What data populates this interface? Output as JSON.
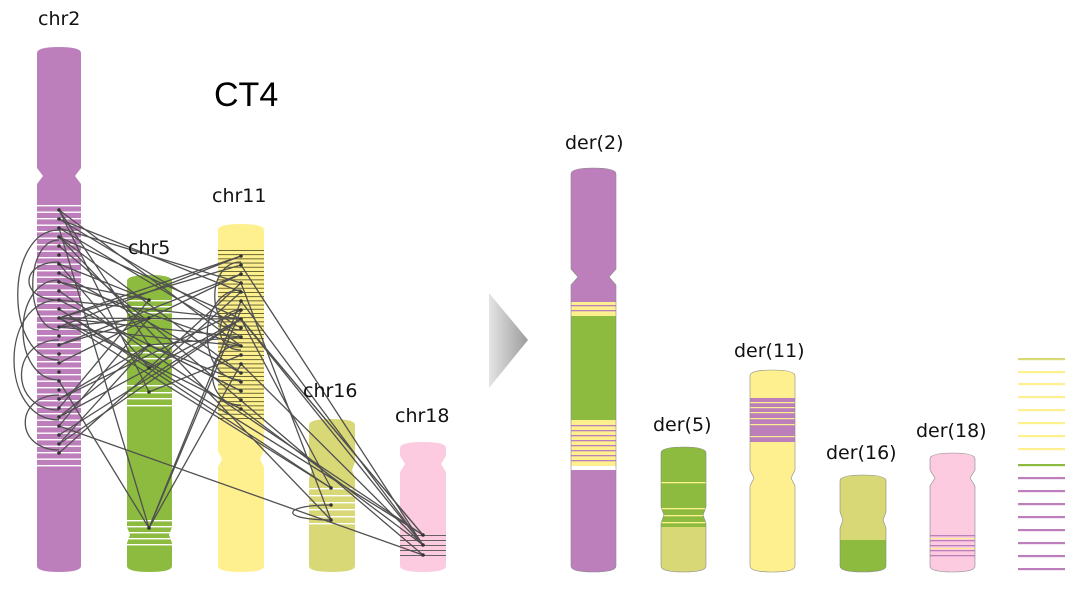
{
  "title": "CT4",
  "colors": {
    "chr2": "#bd7fbb",
    "chr5": "#8cbb3f",
    "chr11": "#fff08f",
    "chr16": "#d9d877",
    "chr18": "#fccbe0",
    "line": "#505050",
    "arrow": "#a9a9a9"
  },
  "original": {
    "chr2": "chr2",
    "chr5": "chr5",
    "chr11": "chr11",
    "chr16": "chr16",
    "chr18": "chr18"
  },
  "derivative": {
    "der2": "der(2)",
    "der5": "der(5)",
    "der11": "der(11)",
    "der16": "der(16)",
    "der18": "der(18)"
  }
}
